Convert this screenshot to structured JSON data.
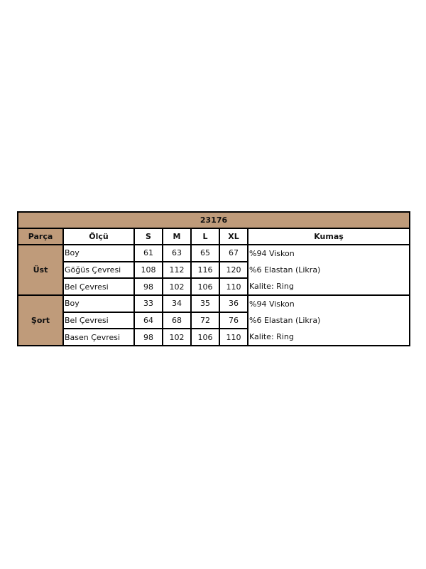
{
  "title": "23176",
  "colors": {
    "header_bg": "#bf9b7a",
    "border": "#000000"
  },
  "headers": [
    "Parça",
    "Ölçü",
    "S",
    "M",
    "L",
    "XL",
    "Kumaş"
  ],
  "groups": [
    {
      "part": "Üst",
      "rows": [
        {
          "measure": "Boy",
          "values": [
            "61",
            "63",
            "65",
            "67"
          ]
        },
        {
          "measure": "Göğüs Çevresi",
          "values": [
            "108",
            "112",
            "116",
            "120"
          ]
        },
        {
          "measure": "Bel Çevresi",
          "values": [
            "98",
            "102",
            "106",
            "110"
          ]
        }
      ],
      "fabric": [
        "%94 Viskon",
        "%6 Elastan (Likra)",
        "Kalite: Ring"
      ]
    },
    {
      "part": "Şort",
      "rows": [
        {
          "measure": "Boy",
          "values": [
            "33",
            "34",
            "35",
            "36"
          ]
        },
        {
          "measure": "Bel Çevresi",
          "values": [
            "64",
            "68",
            "72",
            "76"
          ]
        },
        {
          "measure": "Basen Çevresi",
          "values": [
            "98",
            "102",
            "106",
            "110"
          ]
        }
      ],
      "fabric": [
        "%94 Viskon",
        "%6 Elastan (Likra)",
        "Kalite: Ring"
      ]
    }
  ]
}
